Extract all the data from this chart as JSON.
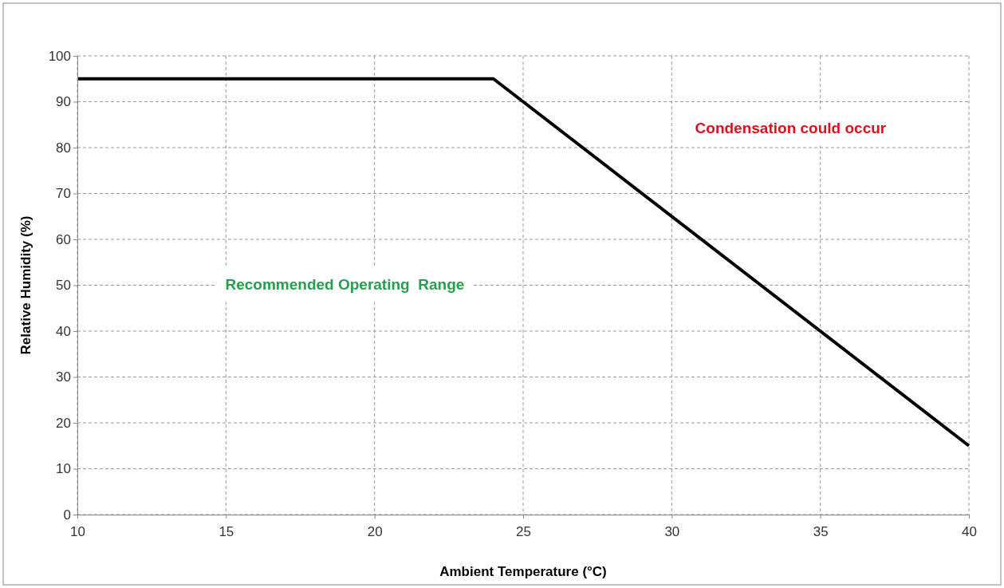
{
  "chart_data": {
    "type": "line",
    "xlabel": "Ambient Temperature (°C)",
    "ylabel": "Relative Humidity (%)",
    "x": [
      10,
      24,
      40
    ],
    "series": [
      {
        "color": "#000000",
        "values": [
          95,
          95,
          15
        ]
      }
    ],
    "xlim": [
      10,
      40
    ],
    "xticks": [
      10,
      15,
      20,
      25,
      30,
      35,
      40
    ],
    "ylim": [
      0,
      100
    ],
    "yticks": [
      0,
      10,
      20,
      30,
      40,
      50,
      60,
      70,
      80,
      90,
      100
    ],
    "grid": true,
    "line_style": "solid",
    "marker": "none",
    "annotations": [
      "Recommended Operating  Range",
      "Condensation could occur"
    ]
  }
}
